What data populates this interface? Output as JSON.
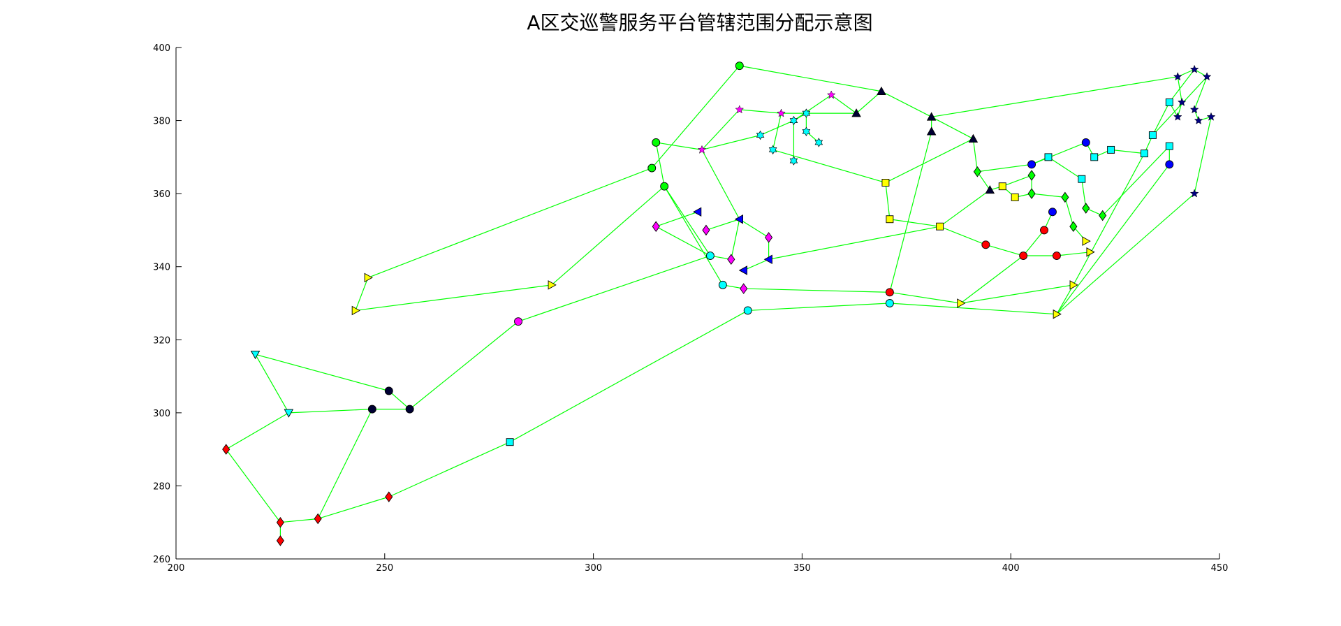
{
  "chart_data": {
    "type": "scatter",
    "title": "A区交巡警服务平台管辖范围分配示意图",
    "xlabel": "",
    "ylabel": "",
    "xlim": [
      200,
      450
    ],
    "ylim": [
      260,
      400
    ],
    "xticks": [
      "200",
      "250",
      "300",
      "350",
      "400",
      "450"
    ],
    "yticks": [
      "260",
      "280",
      "300",
      "320",
      "340",
      "360",
      "380",
      "400"
    ],
    "grid": false,
    "legend": "none",
    "edge_color": "#00ff00",
    "points": [
      {
        "id": 1,
        "x": 212,
        "y": 290,
        "marker": "diamond",
        "color": "#ff0000"
      },
      {
        "id": 2,
        "x": 225,
        "y": 270,
        "marker": "diamond",
        "color": "#ff0000"
      },
      {
        "id": 3,
        "x": 225,
        "y": 265,
        "marker": "diamond",
        "color": "#ff0000"
      },
      {
        "id": 4,
        "x": 234,
        "y": 271,
        "marker": "diamond",
        "color": "#ff0000"
      },
      {
        "id": 5,
        "x": 251,
        "y": 277,
        "marker": "diamond",
        "color": "#ff0000"
      },
      {
        "id": 6,
        "x": 219,
        "y": 316,
        "marker": "tri-down",
        "color": "#00ffff"
      },
      {
        "id": 7,
        "x": 227,
        "y": 300,
        "marker": "tri-down",
        "color": "#00ffff"
      },
      {
        "id": 8,
        "x": 251,
        "y": 306,
        "marker": "circle",
        "color": "#000033"
      },
      {
        "id": 9,
        "x": 247,
        "y": 301,
        "marker": "circle",
        "color": "#000033"
      },
      {
        "id": 10,
        "x": 256,
        "y": 301,
        "marker": "circle",
        "color": "#000033"
      },
      {
        "id": 11,
        "x": 246,
        "y": 337,
        "marker": "tri-right",
        "color": "#ffff00"
      },
      {
        "id": 12,
        "x": 243,
        "y": 328,
        "marker": "tri-right",
        "color": "#ffff00"
      },
      {
        "id": 13,
        "x": 290,
        "y": 335,
        "marker": "tri-right",
        "color": "#ffff00"
      },
      {
        "id": 14,
        "x": 282,
        "y": 325,
        "marker": "circle",
        "color": "#ff00ff"
      },
      {
        "id": 15,
        "x": 280,
        "y": 292,
        "marker": "square",
        "color": "#00ffff"
      },
      {
        "id": 16,
        "x": 335,
        "y": 395,
        "marker": "circle",
        "color": "#00ff00"
      },
      {
        "id": 17,
        "x": 315,
        "y": 374,
        "marker": "circle",
        "color": "#00ff00"
      },
      {
        "id": 18,
        "x": 314,
        "y": 367,
        "marker": "circle",
        "color": "#00ff00"
      },
      {
        "id": 19,
        "x": 317,
        "y": 362,
        "marker": "circle",
        "color": "#00ff00"
      },
      {
        "id": 20,
        "x": 326,
        "y": 372,
        "marker": "star",
        "color": "#ff00ff"
      },
      {
        "id": 21,
        "x": 335,
        "y": 383,
        "marker": "star",
        "color": "#ff00ff"
      },
      {
        "id": 22,
        "x": 345,
        "y": 382,
        "marker": "star",
        "color": "#ff00ff"
      },
      {
        "id": 23,
        "x": 357,
        "y": 387,
        "marker": "star",
        "color": "#ff00ff"
      },
      {
        "id": 24,
        "x": 340,
        "y": 376,
        "marker": "hexagram",
        "color": "#00ffff"
      },
      {
        "id": 25,
        "x": 343,
        "y": 372,
        "marker": "hexagram",
        "color": "#00ffff"
      },
      {
        "id": 26,
        "x": 348,
        "y": 380,
        "marker": "hexagram",
        "color": "#00ffff"
      },
      {
        "id": 27,
        "x": 351,
        "y": 382,
        "marker": "hexagram",
        "color": "#00ffff"
      },
      {
        "id": 28,
        "x": 351,
        "y": 377,
        "marker": "hexagram",
        "color": "#00ffff"
      },
      {
        "id": 29,
        "x": 354,
        "y": 374,
        "marker": "hexagram",
        "color": "#00ffff"
      },
      {
        "id": 30,
        "x": 348,
        "y": 369,
        "marker": "hexagram",
        "color": "#00ffff"
      },
      {
        "id": 31,
        "x": 369,
        "y": 388,
        "marker": "tri-up",
        "color": "#000033"
      },
      {
        "id": 32,
        "x": 363,
        "y": 382,
        "marker": "tri-up",
        "color": "#000033"
      },
      {
        "id": 33,
        "x": 381,
        "y": 381,
        "marker": "tri-up",
        "color": "#000033"
      },
      {
        "id": 34,
        "x": 381,
        "y": 377,
        "marker": "tri-up",
        "color": "#000033"
      },
      {
        "id": 35,
        "x": 391,
        "y": 375,
        "marker": "tri-up",
        "color": "#000033"
      },
      {
        "id": 36,
        "x": 395,
        "y": 361,
        "marker": "tri-up",
        "color": "#000033"
      },
      {
        "id": 37,
        "x": 325,
        "y": 355,
        "marker": "tri-left",
        "color": "#0000ff"
      },
      {
        "id": 38,
        "x": 335,
        "y": 353,
        "marker": "tri-left",
        "color": "#0000ff"
      },
      {
        "id": 39,
        "x": 342,
        "y": 342,
        "marker": "tri-left",
        "color": "#0000ff"
      },
      {
        "id": 40,
        "x": 336,
        "y": 339,
        "marker": "tri-left",
        "color": "#0000ff"
      },
      {
        "id": 41,
        "x": 315,
        "y": 351,
        "marker": "diamond",
        "color": "#ff00ff"
      },
      {
        "id": 42,
        "x": 327,
        "y": 350,
        "marker": "diamond",
        "color": "#ff00ff"
      },
      {
        "id": 43,
        "x": 342,
        "y": 348,
        "marker": "diamond",
        "color": "#ff00ff"
      },
      {
        "id": 44,
        "x": 333,
        "y": 342,
        "marker": "diamond",
        "color": "#ff00ff"
      },
      {
        "id": 45,
        "x": 336,
        "y": 334,
        "marker": "diamond",
        "color": "#ff00ff"
      },
      {
        "id": 46,
        "x": 328,
        "y": 343,
        "marker": "circle",
        "color": "#00ffff"
      },
      {
        "id": 47,
        "x": 331,
        "y": 335,
        "marker": "circle",
        "color": "#00ffff"
      },
      {
        "id": 48,
        "x": 337,
        "y": 328,
        "marker": "circle",
        "color": "#00ffff"
      },
      {
        "id": 49,
        "x": 371,
        "y": 330,
        "marker": "circle",
        "color": "#00ffff"
      },
      {
        "id": 50,
        "x": 370,
        "y": 363,
        "marker": "square",
        "color": "#ffff00"
      },
      {
        "id": 51,
        "x": 371,
        "y": 353,
        "marker": "square",
        "color": "#ffff00"
      },
      {
        "id": 52,
        "x": 383,
        "y": 351,
        "marker": "square",
        "color": "#ffff00"
      },
      {
        "id": 53,
        "x": 398,
        "y": 362,
        "marker": "square",
        "color": "#ffff00"
      },
      {
        "id": 54,
        "x": 401,
        "y": 359,
        "marker": "square",
        "color": "#ffff00"
      },
      {
        "id": 55,
        "x": 371,
        "y": 333,
        "marker": "circle",
        "color": "#ff0000"
      },
      {
        "id": 56,
        "x": 394,
        "y": 346,
        "marker": "circle",
        "color": "#ff0000"
      },
      {
        "id": 57,
        "x": 403,
        "y": 343,
        "marker": "circle",
        "color": "#ff0000"
      },
      {
        "id": 58,
        "x": 408,
        "y": 350,
        "marker": "circle",
        "color": "#ff0000"
      },
      {
        "id": 59,
        "x": 411,
        "y": 343,
        "marker": "circle",
        "color": "#ff0000"
      },
      {
        "id": 60,
        "x": 388,
        "y": 330,
        "marker": "tri-right",
        "color": "#ffff00"
      },
      {
        "id": 61,
        "x": 411,
        "y": 327,
        "marker": "tri-right",
        "color": "#ffff00"
      },
      {
        "id": 62,
        "x": 415,
        "y": 335,
        "marker": "tri-right",
        "color": "#ffff00"
      },
      {
        "id": 63,
        "x": 418,
        "y": 347,
        "marker": "tri-right",
        "color": "#ffff00"
      },
      {
        "id": 64,
        "x": 419,
        "y": 344,
        "marker": "tri-right",
        "color": "#ffff00"
      },
      {
        "id": 65,
        "x": 392,
        "y": 366,
        "marker": "diamond",
        "color": "#00ff00"
      },
      {
        "id": 66,
        "x": 405,
        "y": 365,
        "marker": "diamond",
        "color": "#00ff00"
      },
      {
        "id": 67,
        "x": 405,
        "y": 360,
        "marker": "diamond",
        "color": "#00ff00"
      },
      {
        "id": 68,
        "x": 413,
        "y": 359,
        "marker": "diamond",
        "color": "#00ff00"
      },
      {
        "id": 69,
        "x": 418,
        "y": 356,
        "marker": "diamond",
        "color": "#00ff00"
      },
      {
        "id": 70,
        "x": 422,
        "y": 354,
        "marker": "diamond",
        "color": "#00ff00"
      },
      {
        "id": 71,
        "x": 415,
        "y": 351,
        "marker": "diamond",
        "color": "#00ff00"
      },
      {
        "id": 72,
        "x": 405,
        "y": 368,
        "marker": "circle",
        "color": "#0000ff"
      },
      {
        "id": 73,
        "x": 418,
        "y": 374,
        "marker": "circle",
        "color": "#0000ff"
      },
      {
        "id": 74,
        "x": 410,
        "y": 355,
        "marker": "circle",
        "color": "#0000ff"
      },
      {
        "id": 75,
        "x": 438,
        "y": 368,
        "marker": "circle",
        "color": "#0000ff"
      },
      {
        "id": 76,
        "x": 409,
        "y": 370,
        "marker": "square",
        "color": "#00ffff"
      },
      {
        "id": 77,
        "x": 417,
        "y": 364,
        "marker": "square",
        "color": "#00ffff"
      },
      {
        "id": 78,
        "x": 420,
        "y": 370,
        "marker": "square",
        "color": "#00ffff"
      },
      {
        "id": 79,
        "x": 424,
        "y": 372,
        "marker": "square",
        "color": "#00ffff"
      },
      {
        "id": 80,
        "x": 432,
        "y": 371,
        "marker": "square",
        "color": "#00ffff"
      },
      {
        "id": 81,
        "x": 434,
        "y": 376,
        "marker": "square",
        "color": "#00ffff"
      },
      {
        "id": 82,
        "x": 438,
        "y": 373,
        "marker": "square",
        "color": "#00ffff"
      },
      {
        "id": 83,
        "x": 438,
        "y": 385,
        "marker": "square",
        "color": "#00ffff"
      },
      {
        "id": 84,
        "x": 440,
        "y": 392,
        "marker": "star",
        "color": "#000080"
      },
      {
        "id": 85,
        "x": 444,
        "y": 394,
        "marker": "star",
        "color": "#000080"
      },
      {
        "id": 86,
        "x": 447,
        "y": 392,
        "marker": "star",
        "color": "#000080"
      },
      {
        "id": 87,
        "x": 441,
        "y": 385,
        "marker": "star",
        "color": "#000080"
      },
      {
        "id": 88,
        "x": 444,
        "y": 383,
        "marker": "star",
        "color": "#000080"
      },
      {
        "id": 89,
        "x": 440,
        "y": 381,
        "marker": "star",
        "color": "#000080"
      },
      {
        "id": 90,
        "x": 445,
        "y": 380,
        "marker": "star",
        "color": "#000080"
      },
      {
        "id": 91,
        "x": 448,
        "y": 381,
        "marker": "star",
        "color": "#000080"
      },
      {
        "id": 92,
        "x": 444,
        "y": 360,
        "marker": "star",
        "color": "#000080"
      }
    ],
    "edges": [
      [
        1,
        2
      ],
      [
        2,
        4
      ],
      [
        3,
        2
      ],
      [
        1,
        7
      ],
      [
        7,
        6
      ],
      [
        6,
        8
      ],
      [
        8,
        10
      ],
      [
        7,
        9
      ],
      [
        9,
        10
      ],
      [
        4,
        9
      ],
      [
        4,
        5
      ],
      [
        5,
        15
      ],
      [
        15,
        48
      ],
      [
        10,
        14
      ],
      [
        14,
        46
      ],
      [
        12,
        11
      ],
      [
        12,
        13
      ],
      [
        11,
        18
      ],
      [
        13,
        19
      ],
      [
        18,
        16
      ],
      [
        16,
        31
      ],
      [
        31,
        33
      ],
      [
        31,
        32
      ],
      [
        33,
        84
      ],
      [
        17,
        20
      ],
      [
        17,
        19
      ],
      [
        20,
        21
      ],
      [
        20,
        24
      ],
      [
        21,
        22
      ],
      [
        22,
        25
      ],
      [
        22,
        32
      ],
      [
        32,
        23
      ],
      [
        23,
        26
      ],
      [
        26,
        30
      ],
      [
        24,
        26
      ],
      [
        26,
        27
      ],
      [
        27,
        28
      ],
      [
        28,
        29
      ],
      [
        25,
        50
      ],
      [
        50,
        51
      ],
      [
        20,
        38
      ],
      [
        38,
        43
      ],
      [
        43,
        39
      ],
      [
        38,
        44
      ],
      [
        37,
        41
      ],
      [
        41,
        46
      ],
      [
        19,
        46
      ],
      [
        19,
        47
      ],
      [
        44,
        46
      ],
      [
        42,
        38
      ],
      [
        40,
        39
      ],
      [
        39,
        52
      ],
      [
        52,
        56
      ],
      [
        56,
        57
      ],
      [
        57,
        59
      ],
      [
        59,
        64
      ],
      [
        57,
        58
      ],
      [
        58,
        74
      ],
      [
        47,
        45
      ],
      [
        45,
        55
      ],
      [
        55,
        60
      ],
      [
        60,
        62
      ],
      [
        62,
        61
      ],
      [
        61,
        92
      ],
      [
        48,
        49
      ],
      [
        49,
        61
      ],
      [
        33,
        34
      ],
      [
        34,
        55
      ],
      [
        33,
        35
      ],
      [
        35,
        50
      ],
      [
        35,
        65
      ],
      [
        65,
        72
      ],
      [
        72,
        73
      ],
      [
        73,
        78
      ],
      [
        72,
        76
      ],
      [
        76,
        77
      ],
      [
        77,
        69
      ],
      [
        69,
        70
      ],
      [
        70,
        82
      ],
      [
        82,
        75
      ],
      [
        75,
        61
      ],
      [
        66,
        67
      ],
      [
        67,
        68
      ],
      [
        68,
        71
      ],
      [
        71,
        63
      ],
      [
        36,
        53
      ],
      [
        53,
        54
      ],
      [
        54,
        67
      ],
      [
        53,
        66
      ],
      [
        60,
        57
      ],
      [
        78,
        79
      ],
      [
        79,
        80
      ],
      [
        80,
        81
      ],
      [
        81,
        83
      ],
      [
        83,
        89
      ],
      [
        89,
        87
      ],
      [
        87,
        84
      ],
      [
        84,
        85
      ],
      [
        85,
        86
      ],
      [
        86,
        88
      ],
      [
        88,
        90
      ],
      [
        90,
        91
      ],
      [
        91,
        92
      ],
      [
        85,
        83
      ],
      [
        86,
        81
      ],
      [
        80,
        62
      ],
      [
        51,
        52
      ],
      [
        52,
        36
      ],
      [
        36,
        65
      ]
    ]
  }
}
